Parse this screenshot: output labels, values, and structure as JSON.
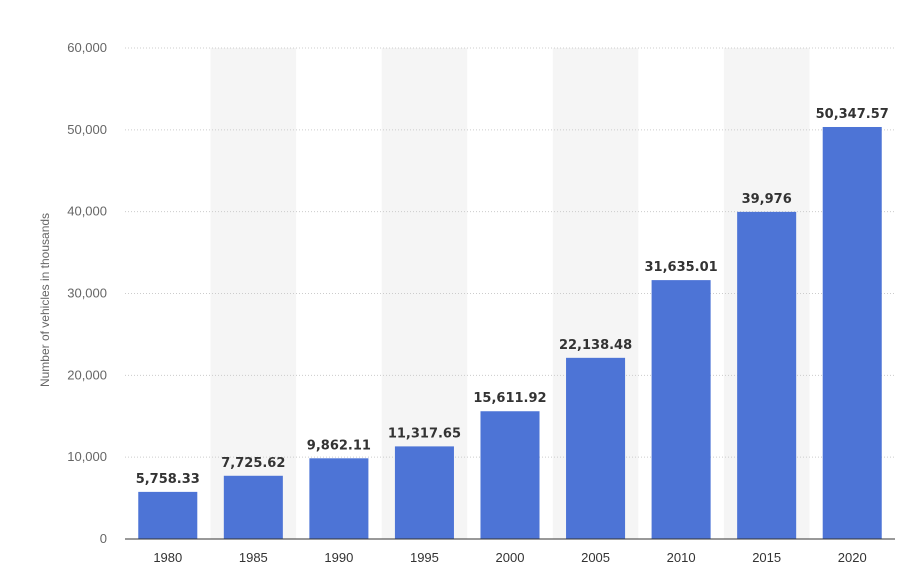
{
  "chart_data": {
    "type": "bar",
    "title": "",
    "xlabel": "",
    "ylabel": "Number of vehicles in thousands",
    "categories": [
      "1980",
      "1985",
      "1990",
      "1995",
      "2000",
      "2005",
      "2010",
      "2015",
      "2020"
    ],
    "values": [
      5758.33,
      7725.62,
      9862.11,
      11317.65,
      15611.92,
      22138.48,
      31635.01,
      39976,
      50347.57
    ],
    "data_labels": [
      "5,758.33",
      "7,725.62",
      "9,862.11",
      "11,317.65",
      "15,611.92",
      "22,138.48",
      "31,635.01",
      "39,976",
      "50,347.57"
    ],
    "ylim": [
      0,
      60000
    ],
    "yticks": [
      0,
      10000,
      20000,
      30000,
      40000,
      50000,
      60000
    ],
    "ytick_labels": [
      "0",
      "10,000",
      "20,000",
      "30,000",
      "40,000",
      "50,000",
      "60,000"
    ],
    "grid": true,
    "bar_color": "#4d74d6",
    "band_color": "#f5f5f5",
    "gridline_color": "#cccccc"
  }
}
